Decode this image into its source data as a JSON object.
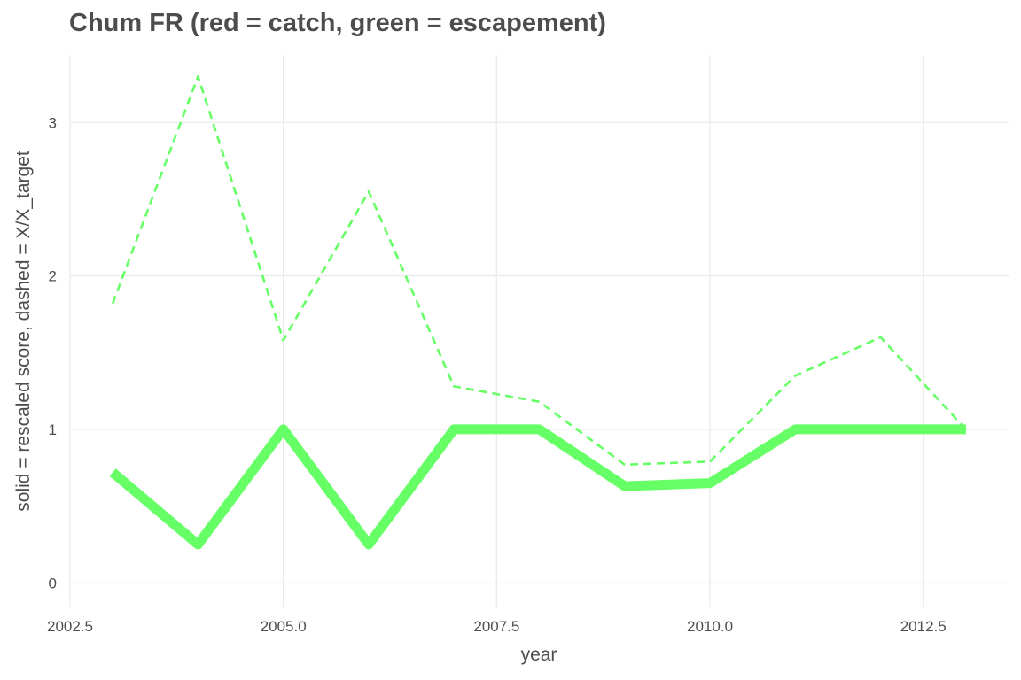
{
  "chart_data": {
    "type": "line",
    "title": "Chum FR (red = catch, green = escapement)",
    "xlabel": "year",
    "ylabel": "solid = rescaled score, dashed = X/X_target",
    "x": [
      2003,
      2004,
      2005,
      2006,
      2007,
      2008,
      2009,
      2010,
      2011,
      2012,
      2013
    ],
    "xlim": [
      2002.5,
      2013.5
    ],
    "ylim": [
      -0.16,
      3.44
    ],
    "x_ticks": [
      2002.5,
      2005.0,
      2007.5,
      2010.0,
      2012.5
    ],
    "x_tick_labels": [
      "2002.5",
      "2005.0",
      "2007.5",
      "2010.0",
      "2012.5"
    ],
    "y_ticks": [
      0,
      1,
      2,
      3
    ],
    "y_tick_labels": [
      "0",
      "1",
      "2",
      "3"
    ],
    "grid": true,
    "series": [
      {
        "style": "solid",
        "color": "#66ff66",
        "values": [
          0.72,
          0.25,
          1.0,
          0.25,
          1.0,
          1.0,
          0.63,
          0.65,
          1.0,
          1.0,
          1.0
        ]
      },
      {
        "style": "dashed",
        "color": "#66ff66",
        "values": [
          1.82,
          3.3,
          1.58,
          2.55,
          1.28,
          1.18,
          0.77,
          0.79,
          1.35,
          1.6,
          1.0
        ]
      }
    ]
  }
}
